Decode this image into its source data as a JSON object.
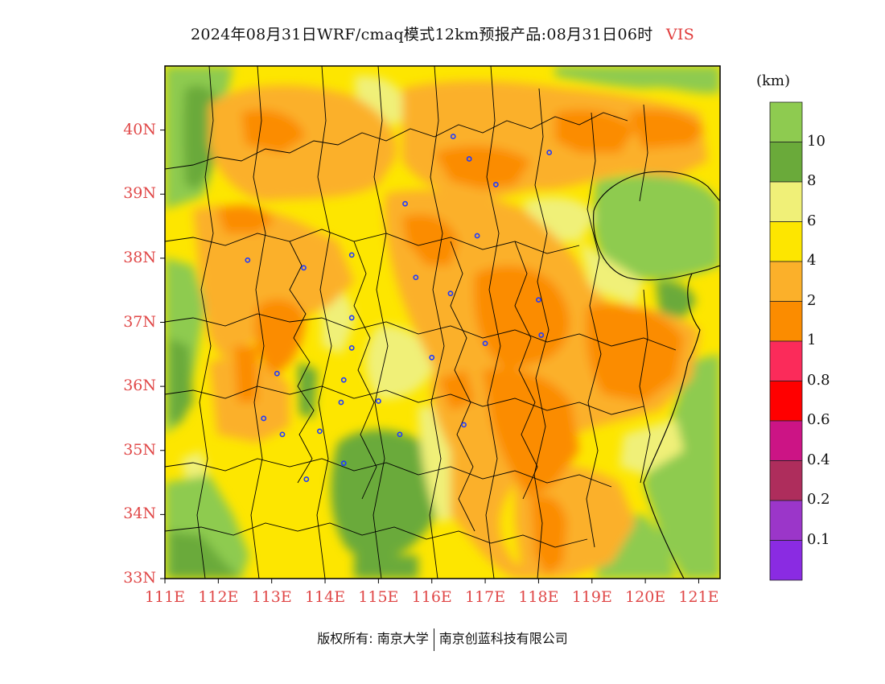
{
  "title": {
    "text": "2024年08月31日WRF/cmaq模式12km预报产品:08月31日06时",
    "variable": "VIS"
  },
  "axes": {
    "lat_labels": [
      "40N",
      "39N",
      "38N",
      "37N",
      "36N",
      "35N",
      "34N",
      "33N"
    ],
    "lon_labels": [
      "111E",
      "112E",
      "113E",
      "114E",
      "115E",
      "116E",
      "117E",
      "118E",
      "119E",
      "120E",
      "121E"
    ],
    "lat_range": [
      33,
      41
    ],
    "lon_range": [
      111,
      121.4
    ]
  },
  "legend": {
    "unit": "(km)",
    "levels": [
      {
        "label": "10",
        "color": "#8ecb50"
      },
      {
        "label": "8",
        "color": "#6aaa3a"
      },
      {
        "label": "6",
        "color": "#f0f078"
      },
      {
        "label": "4",
        "color": "#fde600"
      },
      {
        "label": "2",
        "color": "#fbb02a"
      },
      {
        "label": "1",
        "color": "#fb8c00"
      },
      {
        "label": "0.8",
        "color": "#fb2b5a"
      },
      {
        "label": "0.6",
        "color": "#ff0000"
      },
      {
        "label": "0.4",
        "color": "#cc1485"
      },
      {
        "label": "0.2",
        "color": "#ae2d5c"
      },
      {
        "label": "0.1",
        "color": "#9b36c9"
      }
    ],
    "top_color": "#8ecb50",
    "bottom_color": "#8a2be2"
  },
  "footer": {
    "copyright": "版权所有: 南京大学",
    "company": "南京创蓝科技有限公司"
  },
  "colors": {
    "sea": "#8ecb50",
    "low_vis": "#fb8c00",
    "mid_vis": "#fbb02a",
    "ok_vis": "#fde600",
    "good_vis": "#f0f078",
    "dark_green": "#6aaa3a",
    "city_marker": "#1f3bff",
    "axis_label": "#e04848"
  },
  "cities": [
    {
      "lon": 116.4,
      "lat": 39.9
    },
    {
      "lon": 116.7,
      "lat": 39.55
    },
    {
      "lon": 118.2,
      "lat": 39.65
    },
    {
      "lon": 117.2,
      "lat": 39.15
    },
    {
      "lon": 115.5,
      "lat": 38.85
    },
    {
      "lon": 116.85,
      "lat": 38.35
    },
    {
      "lon": 112.55,
      "lat": 37.97
    },
    {
      "lon": 113.6,
      "lat": 37.85
    },
    {
      "lon": 114.5,
      "lat": 38.05
    },
    {
      "lon": 115.7,
      "lat": 37.7
    },
    {
      "lon": 116.35,
      "lat": 37.45
    },
    {
      "lon": 118.0,
      "lat": 37.35
    },
    {
      "lon": 114.5,
      "lat": 37.07
    },
    {
      "lon": 114.5,
      "lat": 36.6
    },
    {
      "lon": 116.0,
      "lat": 36.45
    },
    {
      "lon": 117.0,
      "lat": 36.67
    },
    {
      "lon": 118.05,
      "lat": 36.8
    },
    {
      "lon": 113.1,
      "lat": 36.2
    },
    {
      "lon": 114.35,
      "lat": 36.1
    },
    {
      "lon": 114.3,
      "lat": 35.75
    },
    {
      "lon": 115.0,
      "lat": 35.77
    },
    {
      "lon": 112.85,
      "lat": 35.5
    },
    {
      "lon": 113.2,
      "lat": 35.25
    },
    {
      "lon": 113.9,
      "lat": 35.3
    },
    {
      "lon": 115.4,
      "lat": 35.25
    },
    {
      "lon": 116.6,
      "lat": 35.4
    },
    {
      "lon": 114.35,
      "lat": 34.8
    },
    {
      "lon": 113.65,
      "lat": 34.55
    }
  ]
}
